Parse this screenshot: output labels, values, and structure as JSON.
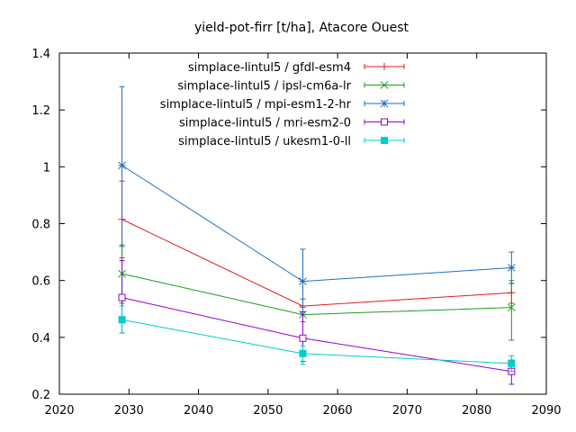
{
  "chart_data": {
    "type": "line",
    "title": "yield-pot-firr [t/ha], Atacore Ouest",
    "xlabel": "",
    "ylabel": "",
    "xlim": [
      2020,
      2090
    ],
    "ylim": [
      0.2,
      1.4
    ],
    "x_ticks": [
      2020,
      2030,
      2040,
      2050,
      2060,
      2070,
      2080,
      2090
    ],
    "y_ticks": [
      0.2,
      0.4,
      0.6,
      0.8,
      1,
      1.2,
      1.4
    ],
    "grid": false,
    "legend_position": "top-right",
    "x": [
      2029,
      2055,
      2085
    ],
    "series": [
      {
        "name": "simplace-lintul5 / gfdl-esm4",
        "color": "#e41a1c",
        "marker": "plus",
        "values": [
          0.815,
          0.51,
          0.557
        ],
        "error_low": [
          0.68,
          0.48,
          0.52
        ],
        "error_high": [
          0.95,
          0.535,
          0.59
        ]
      },
      {
        "name": "simplace-lintul5 / ipsl-cm6a-lr",
        "color": "#1a9e1a",
        "marker": "x",
        "values": [
          0.624,
          0.48,
          0.505
        ],
        "error_low": [
          0.52,
          0.455,
          0.39
        ],
        "error_high": [
          0.725,
          0.505,
          0.6
        ]
      },
      {
        "name": "simplace-lintul5 / mpi-esm1-2-hr",
        "color": "#1f6fbf",
        "marker": "star",
        "values": [
          1.005,
          0.597,
          0.645
        ],
        "error_low": [
          0.72,
          0.48,
          0.59
        ],
        "error_high": [
          1.282,
          0.71,
          0.7
        ]
      },
      {
        "name": "simplace-lintul5 / mri-esm2-0",
        "color": "#9400d3",
        "marker": "square-open",
        "values": [
          0.54,
          0.397,
          0.28
        ],
        "error_low": [
          0.415,
          0.315,
          0.235
        ],
        "error_high": [
          0.67,
          0.49,
          0.32
        ]
      },
      {
        "name": "simplace-lintul5 / ukesm1-0-ll",
        "color": "#00cccc",
        "marker": "square-filled",
        "values": [
          0.462,
          0.343,
          0.308
        ],
        "error_low": [
          0.415,
          0.305,
          0.28
        ],
        "error_high": [
          0.51,
          0.37,
          0.335
        ]
      }
    ]
  }
}
